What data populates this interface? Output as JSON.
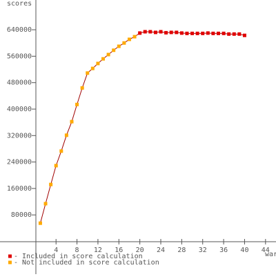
{
  "chart_data": {
    "type": "line",
    "y_label": "scores",
    "x_label": "war",
    "x": [
      1,
      2,
      3,
      4,
      5,
      6,
      7,
      8,
      9,
      10,
      11,
      12,
      13,
      14,
      15,
      16,
      17,
      18,
      19,
      20,
      21,
      22,
      23,
      24,
      25,
      26,
      27,
      28,
      29,
      30,
      31,
      32,
      33,
      34,
      35,
      36,
      37,
      38,
      39,
      40
    ],
    "line_color": "#a00000",
    "series": [
      {
        "name": "- Included in score calculation",
        "color": "#e00000",
        "values": [
          null,
          null,
          null,
          null,
          null,
          null,
          null,
          null,
          null,
          null,
          null,
          null,
          null,
          null,
          null,
          null,
          null,
          null,
          null,
          630000,
          634000,
          634000,
          632000,
          634000,
          631000,
          632000,
          632000,
          630000,
          629000,
          629000,
          629000,
          629000,
          630000,
          629000,
          629000,
          629000,
          627000,
          627000,
          627000,
          623000
        ]
      },
      {
        "name": "- Not included in score calculation",
        "color": "#ffaa00",
        "values": [
          55000,
          114000,
          172000,
          229000,
          273000,
          321000,
          362000,
          414000,
          464000,
          509000,
          523000,
          538000,
          552000,
          565000,
          578000,
          590000,
          600000,
          611000,
          619000,
          null,
          null,
          null,
          null,
          null,
          null,
          null,
          null,
          null,
          null,
          null,
          null,
          null,
          null,
          null,
          null,
          null,
          null,
          null,
          null,
          null
        ]
      }
    ],
    "xlim": [
      -6.7,
      46
    ],
    "xticks": [
      4,
      8,
      12,
      16,
      20,
      24,
      28,
      32,
      36,
      40,
      44
    ],
    "ylim": [
      0,
      730000
    ],
    "yticks": [
      80000,
      160000,
      240000,
      320000,
      400000,
      480000,
      560000,
      640000
    ]
  }
}
